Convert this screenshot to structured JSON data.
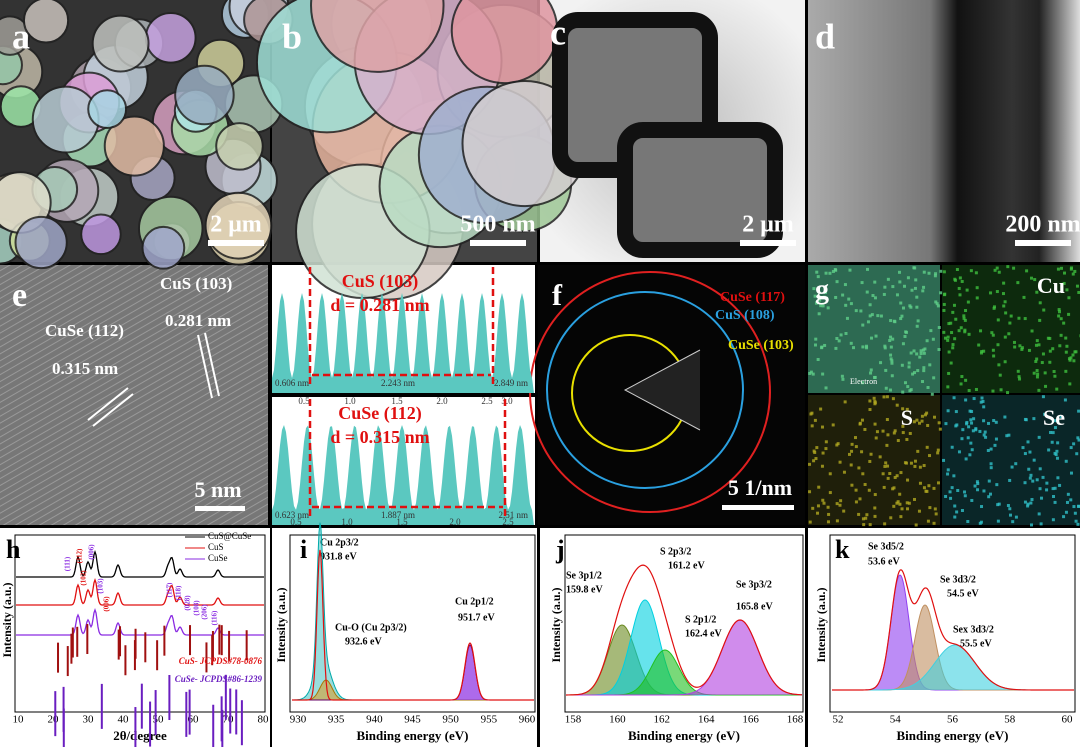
{
  "panels": {
    "a": {
      "label": "a",
      "scale_bar": "2 μm"
    },
    "b": {
      "label": "b",
      "scale_bar": "500 nm"
    },
    "c": {
      "label": "c",
      "scale_bar": "2 μm"
    },
    "d": {
      "label": "d",
      "scale_bar": "200 nm"
    },
    "e": {
      "label": "e",
      "scale_bar": "5 nm",
      "annotations": [
        "CuS (103)",
        "0.281 nm",
        "CuSe (112)",
        "0.315 nm"
      ]
    },
    "profiles": [
      {
        "title": "CuS (103)",
        "spacing": "d = 0.281 nm",
        "markers": [
          "0.606 nm",
          "2.243 nm",
          "2.849 nm"
        ],
        "xticks": [
          "0.5",
          "1.0",
          "1.5",
          "2.0",
          "2.5",
          "3.0"
        ]
      },
      {
        "title": "CuSe (112)",
        "spacing": "d = 0.315 nm",
        "markers": [
          "0.623 nm",
          "1.887 nm",
          "2.51 nm"
        ],
        "xticks": [
          "0.5",
          "1.0",
          "1.5",
          "2.0",
          "2.5"
        ]
      }
    ],
    "f": {
      "label": "f",
      "scale_bar": "5 1/nm",
      "rings": [
        "CuSe (117)",
        "CuS (108)",
        "CuSe (103)"
      ]
    },
    "g": {
      "label": "g",
      "maps": [
        "Cu",
        "S",
        "Se"
      ],
      "inset": "Electron"
    },
    "h": {
      "label": "h",
      "legend": [
        "CuS@CuSe",
        "CuS",
        "CuSe"
      ],
      "peaks": [
        "(111)",
        "(112)",
        "(006)",
        "(102)",
        "(103)",
        "(006)",
        "(117)",
        "(118)",
        "(028)",
        "(108)",
        "(206)",
        "(116)"
      ],
      "references": [
        "CuS- JCPDS#78-0876",
        "CuSe- JCPDS#86-1239"
      ],
      "x_label": "2θ/degree",
      "y_label": "Intensity (a.u.)",
      "xticks": [
        "10",
        "20",
        "30",
        "40",
        "50",
        "60",
        "70",
        "80"
      ]
    },
    "i": {
      "label": "i",
      "annotations": [
        "Cu 2p3/2",
        "931.8 eV",
        "Cu-O (Cu 2p3/2)",
        "932.6 eV",
        "Cu 2p1/2",
        "951.7 eV"
      ],
      "x_label": "Binding energy (eV)",
      "y_label": "Intensity (a.u.)",
      "xticks": [
        "930",
        "935",
        "940",
        "945",
        "950",
        "955",
        "960"
      ]
    },
    "j": {
      "label": "j",
      "annotations": [
        "Se 3p1/2",
        "159.8 eV",
        "S 2p3/2",
        "161.2 eV",
        "S 2p1/2",
        "162.4 eV",
        "Se 3p3/2",
        "165.8 eV"
      ],
      "x_label": "Binding energy (eV)",
      "y_label": "Intensity (a.u.)",
      "xticks": [
        "158",
        "160",
        "162",
        "164",
        "166",
        "168"
      ]
    },
    "k": {
      "label": "k",
      "annotations": [
        "Se 3d5/2",
        "53.6 eV",
        "Se 3d3/2",
        "54.5 eV",
        "Sex 3d3/2",
        "55.5 eV"
      ],
      "x_label": "Binding energy (eV)",
      "y_label": "Intensity (a.u.)",
      "xticks": [
        "52",
        "54",
        "56",
        "58",
        "60"
      ]
    }
  }
}
